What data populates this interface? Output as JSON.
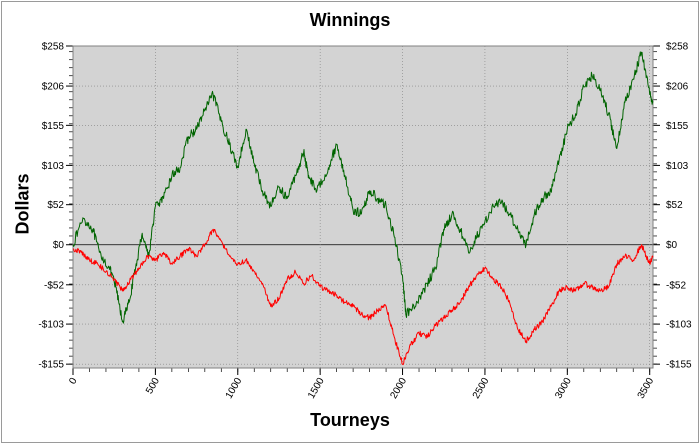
{
  "chart_data": {
    "type": "line",
    "title": "Winnings",
    "xlabel": "Tourneys",
    "ylabel": "Dollars",
    "xlim": [
      0,
      3520
    ],
    "ylim": [
      -160,
      258
    ],
    "x_ticks": [
      0,
      500,
      1000,
      1500,
      2000,
      2500,
      3000,
      3500
    ],
    "x_tick_labels": [
      "0",
      "500",
      "1000",
      "1500",
      "2000",
      "2500",
      "3000",
      "3500"
    ],
    "y_ticks": [
      258,
      206,
      155,
      103,
      52,
      0,
      -52,
      -103,
      -155
    ],
    "y_tick_labels": [
      "$258",
      "$206",
      "$155",
      "$103",
      "$52",
      "$0",
      "-$52",
      "-$103",
      "-$155"
    ],
    "grid": true,
    "series": [
      {
        "color": "#006400",
        "points": [
          [
            0,
            0
          ],
          [
            60,
            35
          ],
          [
            120,
            20
          ],
          [
            160,
            -10
          ],
          [
            220,
            -30
          ],
          [
            260,
            -55
          ],
          [
            300,
            -100
          ],
          [
            340,
            -75
          ],
          [
            380,
            -30
          ],
          [
            420,
            15
          ],
          [
            460,
            -15
          ],
          [
            500,
            50
          ],
          [
            550,
            60
          ],
          [
            600,
            90
          ],
          [
            650,
            100
          ],
          [
            700,
            140
          ],
          [
            750,
            150
          ],
          [
            800,
            175
          ],
          [
            850,
            195
          ],
          [
            900,
            160
          ],
          [
            950,
            130
          ],
          [
            1000,
            100
          ],
          [
            1050,
            150
          ],
          [
            1100,
            105
          ],
          [
            1150,
            70
          ],
          [
            1200,
            50
          ],
          [
            1250,
            75
          ],
          [
            1300,
            60
          ],
          [
            1350,
            90
          ],
          [
            1400,
            120
          ],
          [
            1430,
            90
          ],
          [
            1480,
            70
          ],
          [
            1550,
            100
          ],
          [
            1600,
            130
          ],
          [
            1650,
            90
          ],
          [
            1700,
            45
          ],
          [
            1750,
            40
          ],
          [
            1800,
            70
          ],
          [
            1850,
            60
          ],
          [
            1900,
            50
          ],
          [
            1950,
            10
          ],
          [
            2000,
            -40
          ],
          [
            2020,
            -90
          ],
          [
            2080,
            -80
          ],
          [
            2150,
            -50
          ],
          [
            2200,
            -30
          ],
          [
            2250,
            20
          ],
          [
            2300,
            40
          ],
          [
            2350,
            20
          ],
          [
            2400,
            -10
          ],
          [
            2450,
            10
          ],
          [
            2500,
            30
          ],
          [
            2550,
            50
          ],
          [
            2600,
            55
          ],
          [
            2650,
            40
          ],
          [
            2700,
            20
          ],
          [
            2750,
            0
          ],
          [
            2800,
            40
          ],
          [
            2850,
            60
          ],
          [
            2900,
            70
          ],
          [
            2950,
            110
          ],
          [
            3000,
            150
          ],
          [
            3050,
            170
          ],
          [
            3100,
            205
          ],
          [
            3150,
            220
          ],
          [
            3200,
            200
          ],
          [
            3250,
            170
          ],
          [
            3300,
            125
          ],
          [
            3350,
            185
          ],
          [
            3400,
            215
          ],
          [
            3450,
            250
          ],
          [
            3500,
            195
          ],
          [
            3520,
            185
          ]
        ]
      },
      {
        "color": "#ff0000",
        "points": [
          [
            0,
            -5
          ],
          [
            50,
            -10
          ],
          [
            100,
            -20
          ],
          [
            150,
            -25
          ],
          [
            200,
            -35
          ],
          [
            250,
            -45
          ],
          [
            300,
            -60
          ],
          [
            350,
            -45
          ],
          [
            400,
            -30
          ],
          [
            450,
            -15
          ],
          [
            500,
            -20
          ],
          [
            550,
            -10
          ],
          [
            600,
            -25
          ],
          [
            650,
            -15
          ],
          [
            700,
            -5
          ],
          [
            750,
            -15
          ],
          [
            800,
            0
          ],
          [
            850,
            20
          ],
          [
            900,
            5
          ],
          [
            950,
            -15
          ],
          [
            1000,
            -25
          ],
          [
            1050,
            -20
          ],
          [
            1100,
            -35
          ],
          [
            1150,
            -50
          ],
          [
            1200,
            -80
          ],
          [
            1250,
            -70
          ],
          [
            1300,
            -45
          ],
          [
            1350,
            -35
          ],
          [
            1400,
            -50
          ],
          [
            1450,
            -40
          ],
          [
            1500,
            -55
          ],
          [
            1550,
            -60
          ],
          [
            1600,
            -65
          ],
          [
            1650,
            -75
          ],
          [
            1700,
            -80
          ],
          [
            1750,
            -90
          ],
          [
            1800,
            -95
          ],
          [
            1850,
            -85
          ],
          [
            1900,
            -80
          ],
          [
            1950,
            -120
          ],
          [
            2000,
            -155
          ],
          [
            2050,
            -130
          ],
          [
            2100,
            -115
          ],
          [
            2150,
            -120
          ],
          [
            2200,
            -105
          ],
          [
            2250,
            -95
          ],
          [
            2300,
            -85
          ],
          [
            2350,
            -75
          ],
          [
            2400,
            -55
          ],
          [
            2450,
            -40
          ],
          [
            2500,
            -30
          ],
          [
            2550,
            -45
          ],
          [
            2600,
            -55
          ],
          [
            2650,
            -75
          ],
          [
            2700,
            -110
          ],
          [
            2750,
            -125
          ],
          [
            2800,
            -110
          ],
          [
            2850,
            -100
          ],
          [
            2900,
            -80
          ],
          [
            2950,
            -60
          ],
          [
            3000,
            -55
          ],
          [
            3050,
            -60
          ],
          [
            3100,
            -50
          ],
          [
            3150,
            -55
          ],
          [
            3200,
            -60
          ],
          [
            3250,
            -55
          ],
          [
            3300,
            -25
          ],
          [
            3350,
            -15
          ],
          [
            3400,
            -20
          ],
          [
            3450,
            0
          ],
          [
            3500,
            -25
          ],
          [
            3520,
            -15
          ]
        ]
      }
    ]
  }
}
